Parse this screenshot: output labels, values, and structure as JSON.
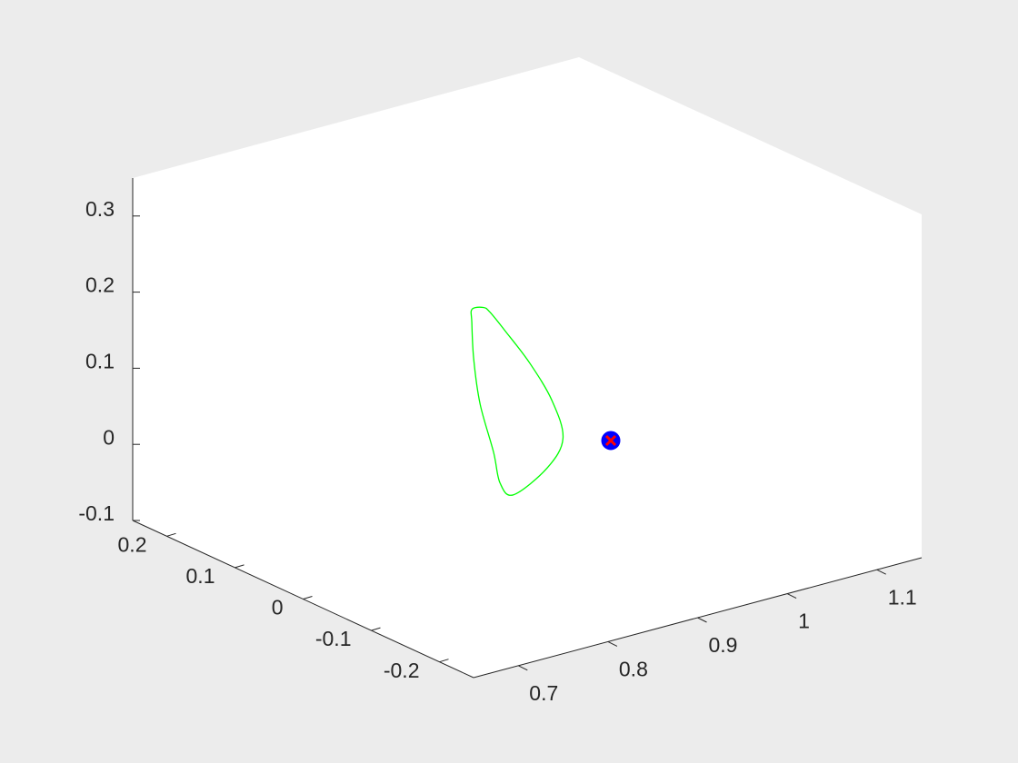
{
  "figure": {
    "background": "#ececec",
    "plot_background": "#ffffff",
    "axis_color": "#262626"
  },
  "chart_data": {
    "type": "line3d",
    "view": "3-D view",
    "xlim": [
      0.65,
      1.15
    ],
    "ylim": [
      -0.25,
      0.25
    ],
    "zlim": [
      -0.1,
      0.35
    ],
    "x_ticks": [
      "0.7",
      "0.8",
      "0.9",
      "1",
      "1.1"
    ],
    "x_tick_values": [
      0.7,
      0.8,
      0.9,
      1.0,
      1.1
    ],
    "y_ticks": [
      "-0.2",
      "-0.1",
      "0",
      "0.1",
      "0.2"
    ],
    "y_tick_values": [
      -0.2,
      -0.1,
      0,
      0.1,
      0.2
    ],
    "z_ticks": [
      "-0.1",
      "0",
      "0.1",
      "0.2",
      "0.3"
    ],
    "z_tick_values": [
      -0.1,
      0,
      0.1,
      0.2,
      0.3
    ],
    "grid": false,
    "box": false,
    "series": [
      {
        "kind": "closed-curve",
        "color": "#00ff00",
        "points": [
          [
            0.9,
            0.02,
            -0.05
          ],
          [
            0.93,
            0.01,
            -0.02
          ],
          [
            0.94,
            0.0,
            0.02
          ],
          [
            0.92,
            -0.01,
            0.08
          ],
          [
            0.88,
            -0.03,
            0.15
          ],
          [
            0.83,
            -0.06,
            0.22
          ],
          [
            0.79,
            -0.09,
            0.27
          ],
          [
            0.775,
            -0.1,
            0.285
          ],
          [
            0.77,
            -0.09,
            0.28
          ],
          [
            0.785,
            -0.07,
            0.25
          ],
          [
            0.81,
            -0.04,
            0.18
          ],
          [
            0.84,
            -0.01,
            0.1
          ],
          [
            0.87,
            0.01,
            0.02
          ],
          [
            0.885,
            0.02,
            -0.03
          ],
          [
            0.9,
            0.02,
            -0.05
          ]
        ]
      },
      {
        "kind": "marker",
        "marker": "o",
        "color": "#0000ff",
        "fill": "#0000ff",
        "point": [
          0.9,
          0.0,
          0.0
        ]
      },
      {
        "kind": "marker",
        "marker": "x",
        "color": "#ff0000",
        "point": [
          0.9,
          0.0,
          0.0
        ]
      }
    ]
  }
}
